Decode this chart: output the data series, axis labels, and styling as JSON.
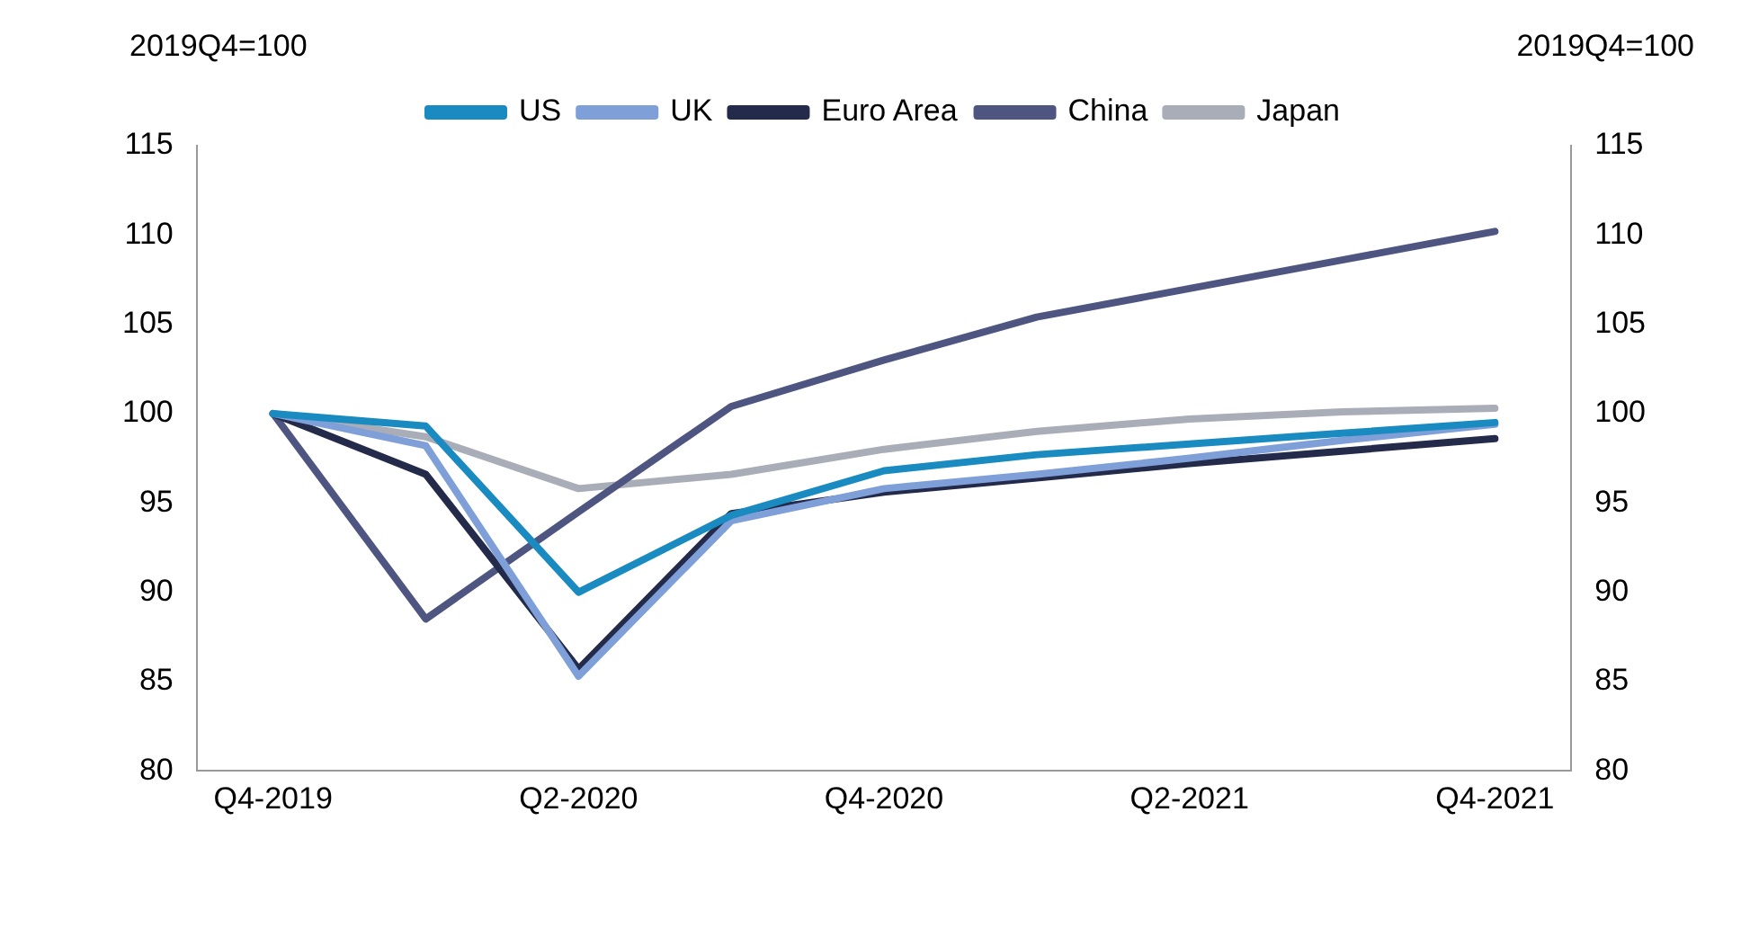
{
  "chart_data": {
    "type": "line",
    "ylabel": "2019Q4=100",
    "y2label": "2019Q4=100",
    "categories": [
      "Q4-2019",
      null,
      "Q2-2020",
      null,
      "Q4-2020",
      null,
      "Q2-2021",
      null,
      "Q4-2021"
    ],
    "series": [
      {
        "name": "US",
        "color": "#1a8bc0",
        "values": [
          100,
          99.3,
          90,
          94.3,
          96.8,
          97.7,
          98.3,
          98.9,
          99.5
        ]
      },
      {
        "name": "UK",
        "color": "#7f9fd9",
        "values": [
          100,
          98.2,
          85.3,
          94.0,
          95.8,
          96.6,
          97.5,
          98.5,
          99.4
        ]
      },
      {
        "name": "Euro Area",
        "color": "#232a4a",
        "values": [
          100,
          96.6,
          85.7,
          94.4,
          95.6,
          96.4,
          97.2,
          97.9,
          98.6
        ]
      },
      {
        "name": "China",
        "color": "#4d5580",
        "values": [
          100,
          88.5,
          94.5,
          100.4,
          103.0,
          105.4,
          107.0,
          108.6,
          110.2
        ]
      },
      {
        "name": "Japan",
        "color": "#a9adb8",
        "values": [
          100,
          98.7,
          95.8,
          96.6,
          98.0,
          99.0,
          99.7,
          100.1,
          100.3
        ]
      }
    ],
    "ylim": [
      80,
      115
    ],
    "yticks": [
      80,
      85,
      90,
      95,
      100,
      105,
      110,
      115
    ],
    "y2lim": [
      80,
      115
    ],
    "y2ticks": [
      80,
      85,
      90,
      95,
      100,
      105,
      110,
      115
    ],
    "grid": false,
    "legend": "top",
    "marker": "none",
    "line_style": "solid"
  }
}
